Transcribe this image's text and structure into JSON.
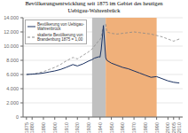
{
  "chart_data": {
    "type": "line",
    "title": "Bevölkerungsentwicklung seit 1875 im Gebiet des heutigen\nUebigau-Wahrenbrück",
    "x": [
      1875,
      1880,
      1885,
      1890,
      1895,
      1900,
      1905,
      1910,
      1916,
      1920,
      1925,
      1930,
      1933,
      1935,
      1939,
      1940,
      1941,
      1943,
      1945,
      1946,
      1950,
      1955,
      1960,
      1965,
      1970,
      1975,
      1980,
      1985,
      1990,
      1995,
      2000,
      2005,
      2010
    ],
    "series": [
      {
        "name": "Bevölkerung von Uebigau-\nWahrenbrück",
        "color": "#1a3060",
        "line_style": "solid",
        "values": [
          6000,
          6050,
          6100,
          6200,
          6350,
          6500,
          6700,
          7000,
          7400,
          7200,
          7500,
          7900,
          8100,
          8300,
          8500,
          8450,
          9500,
          12900,
          8400,
          8000,
          7600,
          7300,
          7000,
          6800,
          6500,
          6200,
          5900,
          5600,
          5700,
          5400,
          5100,
          4900,
          4800
        ]
      },
      {
        "name": "skalierte Bevölkerung von\nBrandenburg 1875 = 1,00",
        "color": "#888888",
        "line_style": "dashed",
        "values": [
          6000,
          6050,
          6200,
          6400,
          6700,
          7000,
          7400,
          7900,
          8400,
          8200,
          8700,
          9200,
          9600,
          10000,
          10800,
          10900,
          11300,
          12900,
          13100,
          12000,
          11800,
          11700,
          11800,
          11900,
          12000,
          11900,
          11800,
          11700,
          11500,
          11300,
          11000,
          10700,
          11000
        ]
      }
    ],
    "shaded_regions": [
      {
        "x": [
          1933,
          1945
        ],
        "color": "#c0c0c0"
      },
      {
        "x": [
          1945,
          1990
        ],
        "color": "#f0b07a"
      }
    ],
    "xlim": [
      1872,
      2013
    ],
    "xticks": [
      1875,
      1880,
      1890,
      1900,
      1910,
      1920,
      1930,
      1940,
      1950,
      1960,
      1970,
      1980,
      1990,
      2000,
      2005,
      2010
    ],
    "ylim": [
      0,
      14000
    ],
    "yticks": [
      0,
      {
        "value": 2000,
        "label": "2.000"
      },
      {
        "value": 4000,
        "label": "4.000"
      },
      {
        "value": 6000,
        "label": "6.000"
      },
      {
        "value": 8000,
        "label": "8.000"
      },
      {
        "value": 10000,
        "label": "10.000"
      },
      {
        "value": 12000,
        "label": "12.000"
      },
      {
        "value": 14000,
        "label": "14.000"
      }
    ],
    "grid": "y",
    "legend": "upper left"
  }
}
